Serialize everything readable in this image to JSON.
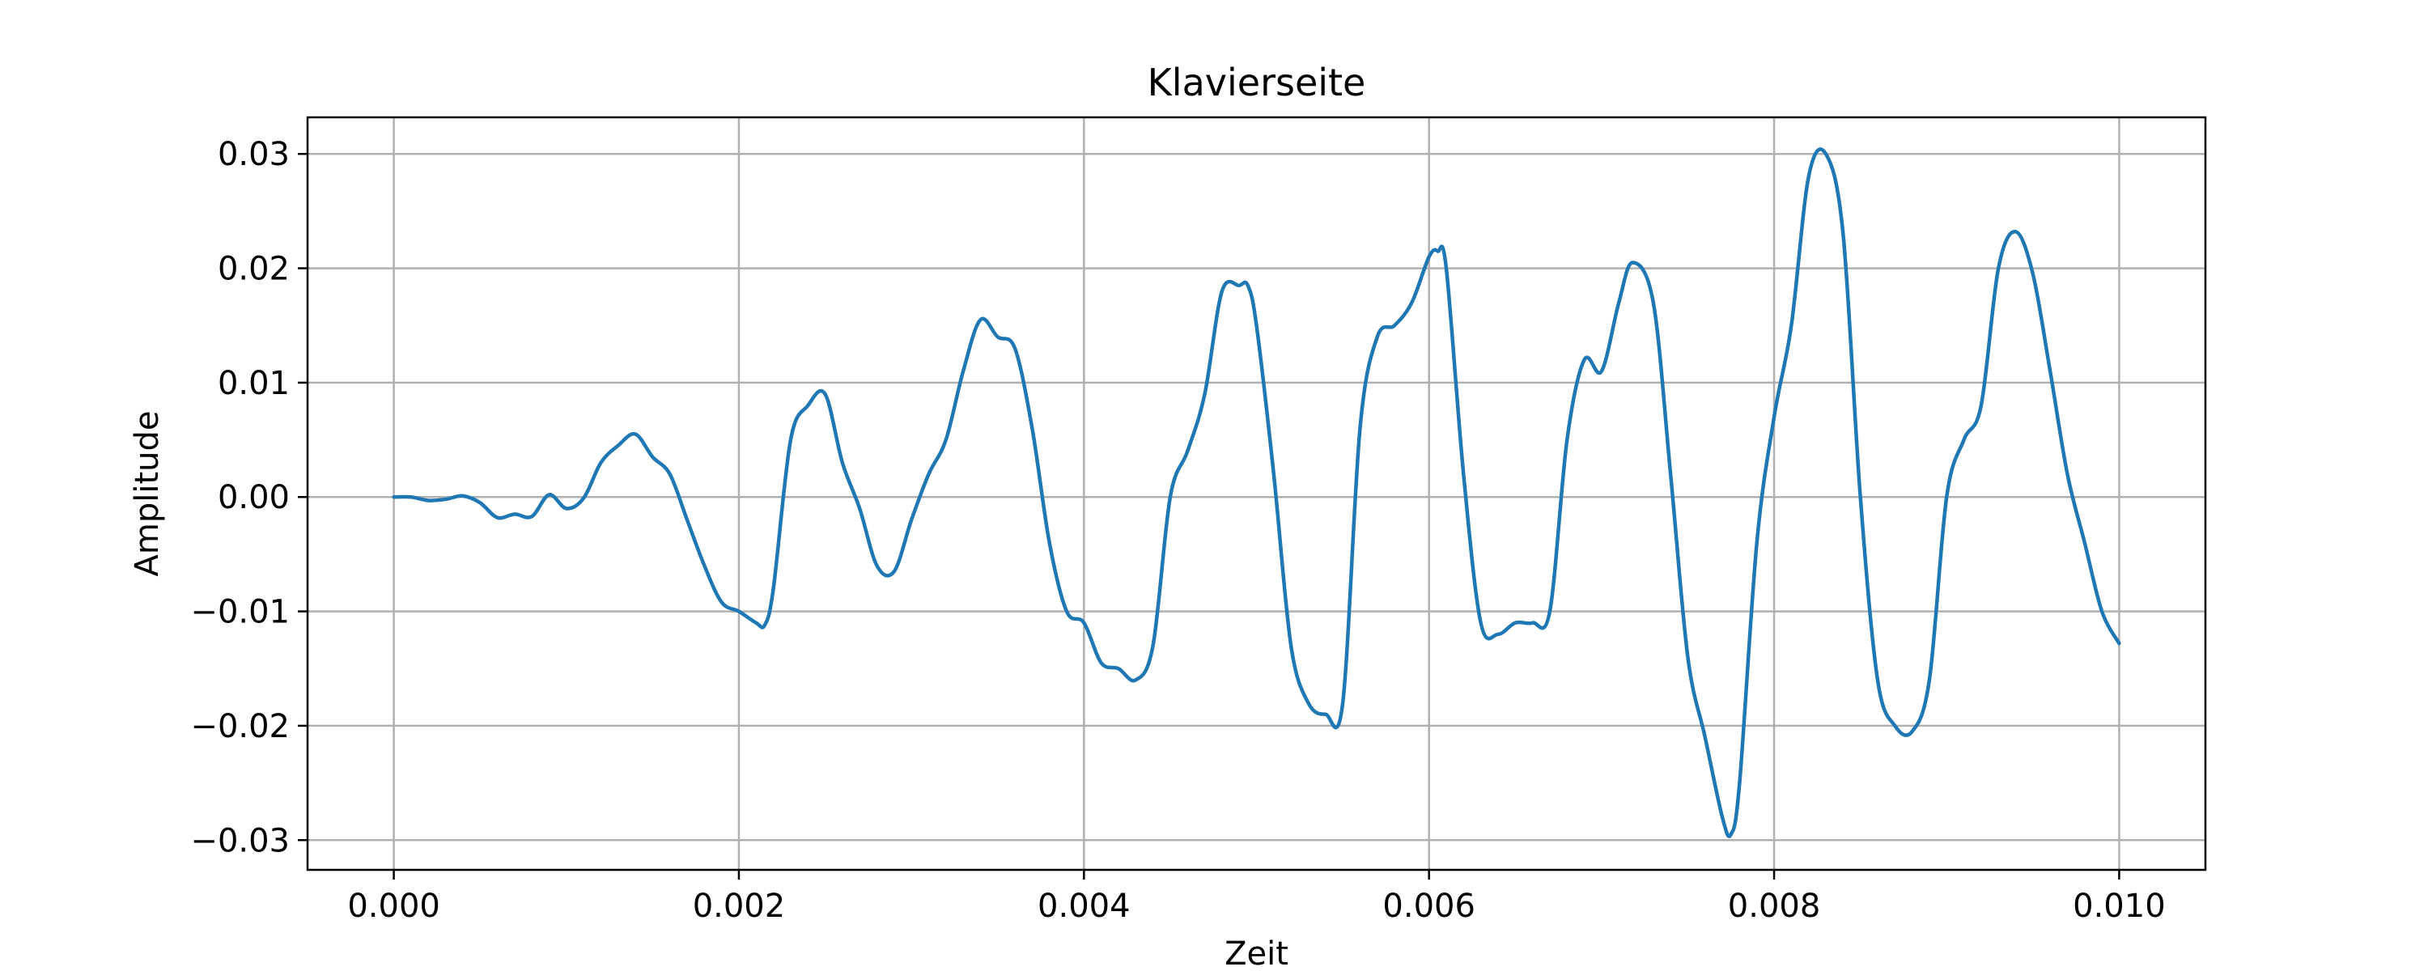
{
  "chart_data": {
    "type": "line",
    "title": "Klavierseite",
    "xlabel": "Zeit",
    "ylabel": "Amplitude",
    "xlim": [
      -0.0005,
      0.0105
    ],
    "ylim": [
      -0.0326,
      0.0332
    ],
    "xticks": [
      0.0,
      0.002,
      0.004,
      0.006,
      0.008,
      0.01
    ],
    "xtick_labels": [
      "0.000",
      "0.002",
      "0.004",
      "0.006",
      "0.008",
      "0.010"
    ],
    "yticks": [
      0.03,
      0.02,
      0.01,
      0.0,
      -0.01,
      -0.02,
      -0.03
    ],
    "ytick_labels": [
      "0.03",
      "0.02",
      "0.01",
      "0.00",
      "−0.01",
      "−0.02",
      "−0.03"
    ],
    "grid": true,
    "colors": {
      "line": "#1f77b4",
      "grid": "#b0b0b0",
      "axes": "#000000"
    },
    "series": [
      {
        "x": [
          0.0,
          0.0001,
          0.0002,
          0.0003,
          0.0004,
          0.0005,
          0.0006,
          0.0007,
          0.0008,
          0.0009,
          0.001,
          0.0011,
          0.0012,
          0.0013,
          0.0014,
          0.0015,
          0.0016,
          0.0017,
          0.0018,
          0.0019,
          0.002,
          0.0021,
          0.00215,
          0.0022,
          0.0023,
          0.0024,
          0.0025,
          0.0026,
          0.0027,
          0.0028,
          0.0029,
          0.003,
          0.0031,
          0.0032,
          0.0033,
          0.0034,
          0.0035,
          0.0036,
          0.0037,
          0.0038,
          0.0039,
          0.004,
          0.0041,
          0.0042,
          0.0043,
          0.0044,
          0.0045,
          0.0046,
          0.0047,
          0.0048,
          0.0049,
          0.00495,
          0.005,
          0.0051,
          0.0052,
          0.0053,
          0.0054,
          0.0055,
          0.0056,
          0.0057,
          0.0058,
          0.0059,
          0.006,
          0.00605,
          0.0061,
          0.0062,
          0.0063,
          0.0064,
          0.0065,
          0.0066,
          0.0067,
          0.0068,
          0.0069,
          0.007,
          0.0071,
          0.00718,
          0.0073,
          0.0074,
          0.0075,
          0.0076,
          0.0077,
          0.00775,
          0.0078,
          0.0079,
          0.008,
          0.0081,
          0.0082,
          0.0083,
          0.0084,
          0.0085,
          0.0086,
          0.0087,
          0.0088,
          0.0089,
          0.009,
          0.0091,
          0.0092,
          0.0093,
          0.0094,
          0.0095,
          0.0096,
          0.0097,
          0.0098,
          0.0099,
          0.01
        ],
        "y": [
          0.0,
          0.0,
          -0.0003,
          -0.0002,
          0.0001,
          -0.0005,
          -0.0018,
          -0.0015,
          -0.0017,
          0.0002,
          -0.001,
          -0.0001,
          0.003,
          0.0045,
          0.0055,
          0.0035,
          0.002,
          -0.002,
          -0.006,
          -0.0092,
          -0.01,
          -0.011,
          -0.0112,
          -0.008,
          0.005,
          0.008,
          0.009,
          0.003,
          -0.001,
          -0.006,
          -0.0065,
          -0.002,
          0.002,
          0.005,
          0.011,
          0.0155,
          0.014,
          0.013,
          0.006,
          -0.004,
          -0.01,
          -0.011,
          -0.0145,
          -0.015,
          -0.016,
          -0.013,
          0.0,
          0.004,
          0.009,
          0.018,
          0.0185,
          0.0185,
          0.015,
          0.002,
          -0.013,
          -0.018,
          -0.019,
          -0.018,
          0.006,
          0.014,
          0.015,
          0.017,
          0.021,
          0.0215,
          0.02,
          0.002,
          -0.011,
          -0.012,
          -0.011,
          -0.011,
          -0.01,
          0.005,
          0.012,
          0.011,
          0.017,
          0.0205,
          0.017,
          0.002,
          -0.014,
          -0.021,
          -0.028,
          -0.0295,
          -0.025,
          -0.004,
          0.007,
          0.015,
          0.028,
          0.03,
          0.023,
          0.0,
          -0.016,
          -0.02,
          -0.0205,
          -0.016,
          0.0,
          0.005,
          0.008,
          0.02,
          0.0232,
          0.0195,
          0.011,
          0.002,
          -0.004,
          -0.01,
          -0.0128
        ]
      }
    ]
  }
}
